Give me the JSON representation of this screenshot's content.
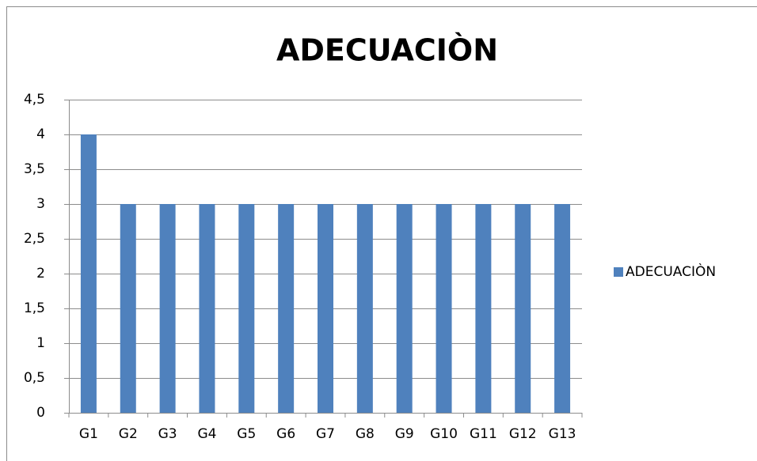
{
  "chart_data": {
    "type": "bar",
    "title": "ADECUACIÒN",
    "categories": [
      "G1",
      "G2",
      "G3",
      "G4",
      "G5",
      "G6",
      "G7",
      "G8",
      "G9",
      "G10",
      "G11",
      "G12",
      "G13"
    ],
    "series": [
      {
        "name": "ADECUACIÒN",
        "color": "#4f81bd",
        "values": [
          4,
          3,
          3,
          3,
          3,
          3,
          3,
          3,
          3,
          3,
          3,
          3,
          3
        ]
      }
    ],
    "ylim": [
      0,
      4.5
    ],
    "yticks": [
      0,
      {
        "value": 0.5,
        "label": "0,5"
      },
      1,
      {
        "value": 1.5,
        "label": "1,5"
      },
      2,
      {
        "value": 2.5,
        "label": "2,5"
      },
      3,
      {
        "value": 3.5,
        "label": "3,5"
      },
      4,
      {
        "value": 4.5,
        "label": "4,5"
      }
    ],
    "grid": true,
    "legend": "right"
  }
}
